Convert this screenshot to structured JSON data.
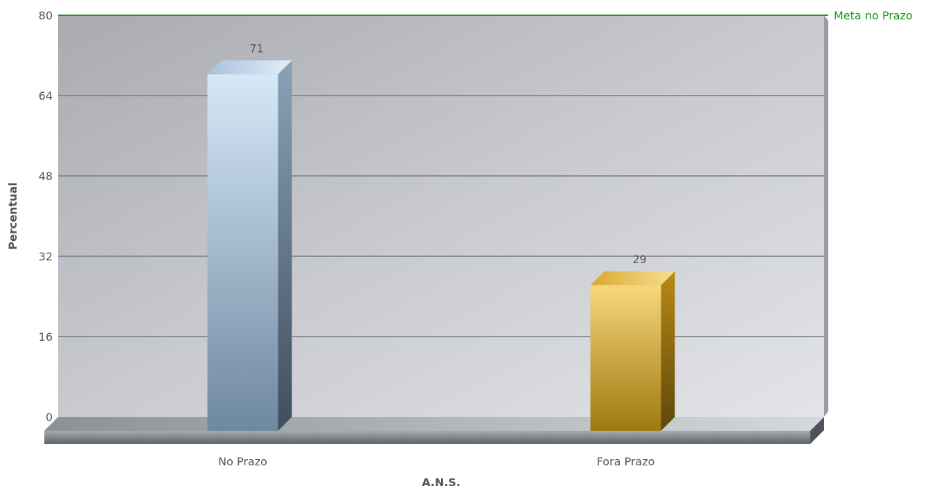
{
  "chart_data": {
    "type": "bar",
    "title": "",
    "xlabel": "A.N.S.",
    "ylabel": "Percentual",
    "ylim": [
      0,
      80
    ],
    "y_ticks": [
      "0",
      "16",
      "32",
      "48",
      "64",
      "80"
    ],
    "categories": [
      "No Prazo",
      "Fora Prazo"
    ],
    "values": [
      71,
      29
    ],
    "value_labels": [
      "71",
      "29"
    ],
    "grid": true,
    "bar_colors": [
      "#8fa8be",
      "#d4a93a"
    ],
    "trend_line": {
      "label": "Meta no Prazo",
      "value": 80,
      "color": "#1a9a1a"
    }
  }
}
